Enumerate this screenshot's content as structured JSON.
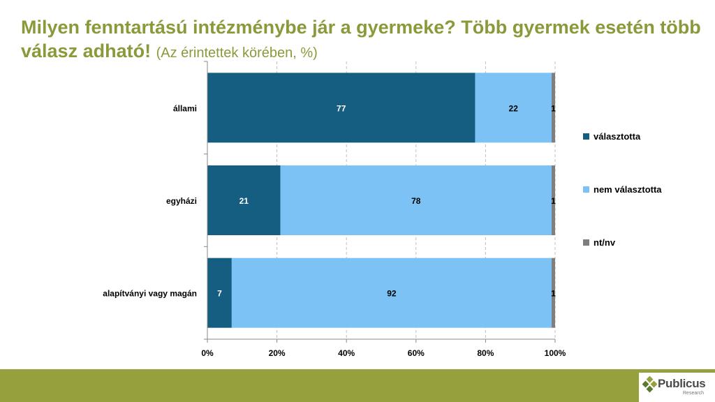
{
  "title": {
    "main": "Milyen fenntartású intézménybe jár a gyermeke? Több gyermek esetén több válasz adható!",
    "sub": "(Az érintettek körében, %)"
  },
  "chart_data": {
    "type": "bar",
    "orientation": "horizontal",
    "stacked": true,
    "categories": [
      "állami",
      "egyházi",
      "alapítványi vagy magán"
    ],
    "series": [
      {
        "name": "választotta",
        "values": [
          77,
          21,
          7
        ],
        "color": "#165e81"
      },
      {
        "name": "nem választotta",
        "values": [
          22,
          78,
          92
        ],
        "color": "#7dc2f4"
      },
      {
        "name": "nt/nv",
        "values": [
          1,
          1,
          1
        ],
        "color": "#7f7f7f"
      }
    ],
    "xlim": [
      0,
      100
    ],
    "x_ticks": [
      "0%",
      "20%",
      "40%",
      "60%",
      "80%",
      "100%"
    ],
    "grid": "vertical dashed",
    "legend_position": "right"
  },
  "brand": {
    "name": "Publicus",
    "sub": "Research",
    "colors": {
      "title": "#8a9a3a",
      "footer": "#96a03c"
    }
  }
}
